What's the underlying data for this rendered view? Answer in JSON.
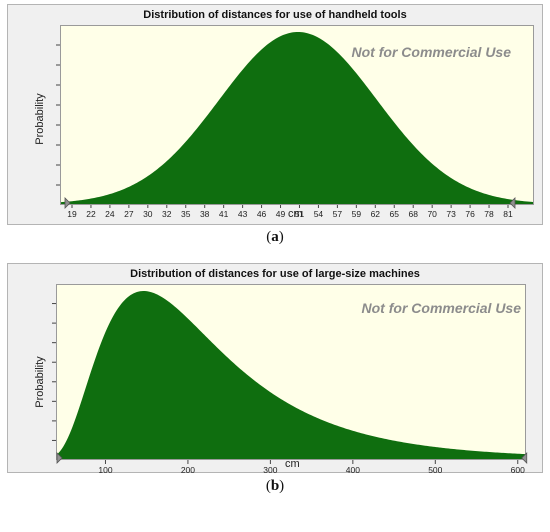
{
  "chart_data": [
    {
      "type": "area",
      "title": "Distribution of distances for use of handheld tools",
      "xlabel": "cm",
      "ylabel": "Probability",
      "watermark": "Not for Commercial Use",
      "caption_letter": "a",
      "distribution": "normal",
      "mean": 50,
      "sd": 10.3,
      "xlim": [
        19,
        81
      ],
      "tick_labels": [
        "19",
        "22",
        "24",
        "27",
        "30",
        "32",
        "35",
        "38",
        "41",
        "43",
        "46",
        "49",
        "51",
        "54",
        "57",
        "59",
        "62",
        "65",
        "68",
        "70",
        "73",
        "76",
        "78",
        "81"
      ],
      "fill_color": "#0f6e0f",
      "background_color": "#ffffe8"
    },
    {
      "type": "area",
      "title": "Distribution of distances for use of large-size machines",
      "xlabel": "cm",
      "ylabel": "Probability",
      "watermark": "Not for Commercial Use",
      "caption_letter": "b",
      "distribution": "lognormal",
      "mode": 135,
      "xlim": [
        40,
        610
      ],
      "tick_values": [
        100,
        200,
        300,
        400,
        500,
        600
      ],
      "fill_color": "#0f6e0f",
      "background_color": "#ffffe8"
    }
  ]
}
